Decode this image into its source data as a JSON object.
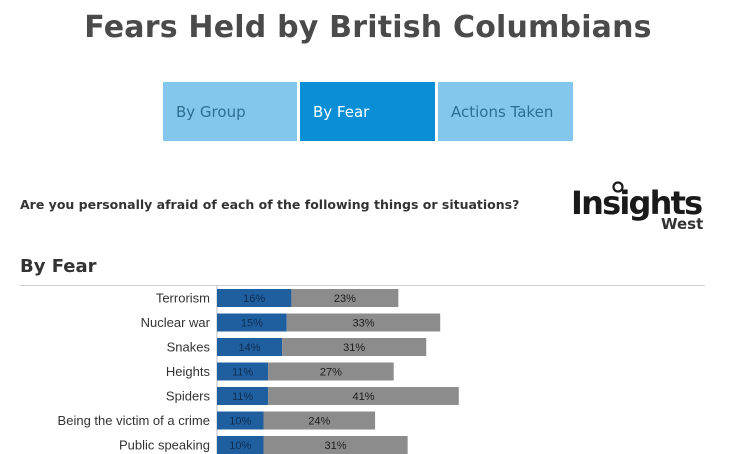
{
  "title": "Fears Held by British Columbians",
  "tabs": [
    {
      "label": "By Group",
      "active": false
    },
    {
      "label": "By Fear",
      "active": true
    },
    {
      "label": "Actions Taken",
      "active": false
    }
  ],
  "question": "Are you personally afraid of each of the following things or situations?",
  "logo": {
    "main": "Insights",
    "sub": "West"
  },
  "section_title": "By Fear",
  "colors": {
    "tab_active": "#0a8fd6",
    "tab_inactive": "#83c7ec",
    "series_1": "#1f5fa0",
    "series_2": "#8c8c8c"
  },
  "chart_data": {
    "type": "bar",
    "orientation": "horizontal",
    "stacked": true,
    "categories": [
      "Terrorism",
      "Nuclear war",
      "Snakes",
      "Heights",
      "Spiders",
      "Being the victim of a crime",
      "Public speaking"
    ],
    "series": [
      {
        "values": [
          16,
          15,
          14,
          11,
          11,
          10,
          10
        ],
        "labels": [
          "16%",
          "15%",
          "14%",
          "11%",
          "11%",
          "10%",
          "10%"
        ],
        "color": "#1f5fa0"
      },
      {
        "values": [
          23,
          33,
          31,
          27,
          41,
          24,
          31
        ],
        "labels": [
          "23%",
          "33%",
          "31%",
          "27%",
          "41%",
          "24%",
          "31%"
        ],
        "color": "#8c8c8c"
      }
    ],
    "xlim": [
      0,
      100
    ],
    "grid": false,
    "legend": "none"
  }
}
